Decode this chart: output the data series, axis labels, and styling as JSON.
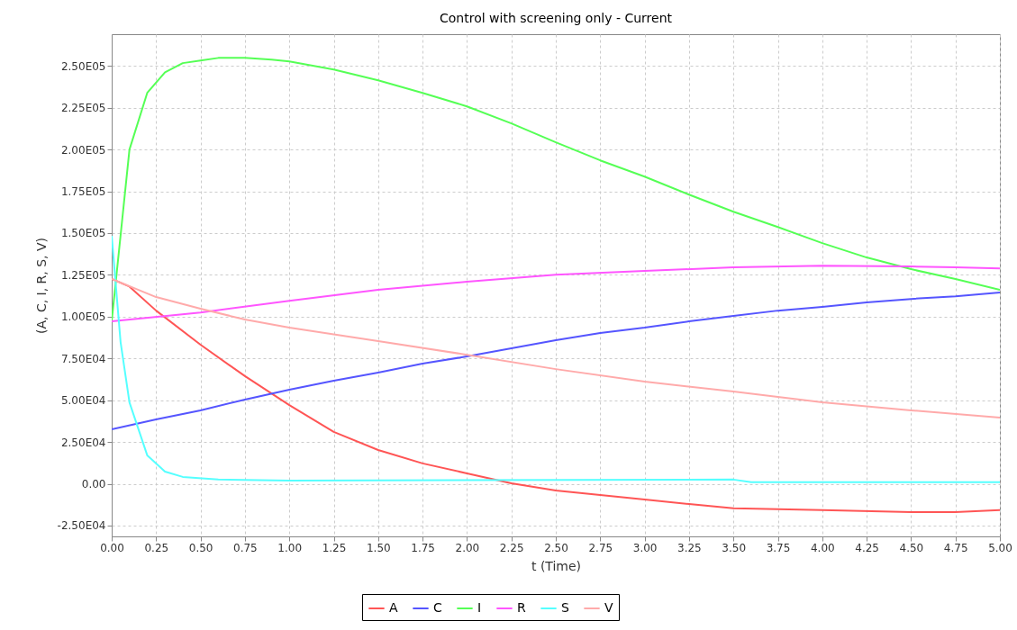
{
  "chart_data": {
    "type": "line",
    "title": "Control with screening only - Current",
    "xlabel": "t (Time)",
    "ylabel": "(A, C, I, R, S, V)",
    "xlim": [
      0,
      5
    ],
    "xticks": [
      {
        "value": 0,
        "label": "0.00"
      },
      {
        "value": 0.25,
        "label": "0.25"
      },
      {
        "value": 0.5,
        "label": "0.50"
      },
      {
        "value": 0.75,
        "label": "0.75"
      },
      {
        "value": 1,
        "label": "1.00"
      },
      {
        "value": 1.25,
        "label": "1.25"
      },
      {
        "value": 1.5,
        "label": "1.50"
      },
      {
        "value": 1.75,
        "label": "1.75"
      },
      {
        "value": 2,
        "label": "2.00"
      },
      {
        "value": 2.25,
        "label": "2.25"
      },
      {
        "value": 2.5,
        "label": "2.50"
      },
      {
        "value": 2.75,
        "label": "2.75"
      },
      {
        "value": 3,
        "label": "3.00"
      },
      {
        "value": 3.25,
        "label": "3.25"
      },
      {
        "value": 3.5,
        "label": "3.50"
      },
      {
        "value": 3.75,
        "label": "3.75"
      },
      {
        "value": 4,
        "label": "4.00"
      },
      {
        "value": 4.25,
        "label": "4.25"
      },
      {
        "value": 4.5,
        "label": "4.50"
      },
      {
        "value": 4.75,
        "label": "4.75"
      },
      {
        "value": 5,
        "label": "5.00"
      }
    ],
    "ylim": [
      -31500,
      269000
    ],
    "yticks": [
      {
        "value": -25000,
        "label": "-2.50E04"
      },
      {
        "value": 0,
        "label": "0.00"
      },
      {
        "value": 25000,
        "label": "2.50E04"
      },
      {
        "value": 50000,
        "label": "5.00E04"
      },
      {
        "value": 75000,
        "label": "7.50E04"
      },
      {
        "value": 100000,
        "label": "1.00E05"
      },
      {
        "value": 125000,
        "label": "1.25E05"
      },
      {
        "value": 150000,
        "label": "1.50E05"
      },
      {
        "value": 175000,
        "label": "1.75E05"
      },
      {
        "value": 200000,
        "label": "2.00E05"
      },
      {
        "value": 225000,
        "label": "2.25E05"
      },
      {
        "value": 250000,
        "label": "2.50E05"
      }
    ],
    "grid": true,
    "legend": "bottom",
    "line_style": "solid",
    "marker": "none",
    "series": [
      {
        "name": "A",
        "color": "#ff5555",
        "x": [
          0,
          0.1,
          0.25,
          0.5,
          0.75,
          1,
          1.25,
          1.5,
          1.75,
          2,
          2.25,
          2.5,
          2.75,
          3,
          3.25,
          3.5,
          4,
          4.5,
          4.75,
          5
        ],
        "values": [
          122500,
          118000,
          103600,
          83200,
          64400,
          47100,
          31000,
          20200,
          12200,
          6200,
          300,
          -4000,
          -6700,
          -9400,
          -12100,
          -14700,
          -15800,
          -16900,
          -16900,
          -15800
        ]
      },
      {
        "name": "C",
        "color": "#5555ff",
        "x": [
          0,
          0.25,
          0.5,
          0.75,
          1,
          1.25,
          1.5,
          1.75,
          2,
          2.25,
          2.5,
          2.75,
          3,
          3.25,
          3.5,
          3.75,
          4,
          4.25,
          4.5,
          4.75,
          5
        ],
        "values": [
          32600,
          38500,
          43900,
          50400,
          56300,
          61700,
          66500,
          71900,
          76200,
          81000,
          85900,
          90200,
          93400,
          97200,
          100400,
          103600,
          105800,
          108500,
          110600,
          112200,
          114400
        ]
      },
      {
        "name": "I",
        "color": "#55ff55",
        "x": [
          0,
          0.1,
          0.2,
          0.3,
          0.4,
          0.5,
          0.6,
          0.75,
          0.9,
          1,
          1.25,
          1.5,
          1.75,
          2,
          2.25,
          2.5,
          2.75,
          3,
          3.25,
          3.5,
          3.75,
          4,
          4.25,
          4.5,
          4.75,
          5
        ],
        "values": [
          97200,
          200000,
          233900,
          246200,
          251700,
          253200,
          254800,
          254800,
          253800,
          252700,
          247900,
          241400,
          233900,
          225800,
          215600,
          204300,
          193500,
          183800,
          173000,
          162800,
          153600,
          144000,
          135400,
          128400,
          122500,
          116000
        ]
      },
      {
        "name": "R",
        "color": "#ff55ff",
        "x": [
          0,
          0.5,
          1,
          1.5,
          2,
          2.5,
          3,
          3.5,
          4,
          4.5,
          4.75,
          5
        ],
        "values": [
          97200,
          102500,
          109500,
          116000,
          120900,
          125100,
          127300,
          129500,
          130500,
          130000,
          129500,
          128900
        ]
      },
      {
        "name": "S",
        "color": "#55ffff",
        "x": [
          0,
          0.05,
          0.1,
          0.2,
          0.3,
          0.4,
          0.6,
          1,
          3.5,
          3.6,
          5
        ],
        "values": [
          148300,
          84800,
          48700,
          17000,
          7300,
          4100,
          2500,
          1900,
          2500,
          900,
          900
        ]
      },
      {
        "name": "V",
        "color": "#ffaaaa",
        "x": [
          0,
          0.25,
          0.5,
          0.75,
          1,
          1.5,
          2,
          2.5,
          3,
          3.5,
          4,
          4.5,
          5
        ],
        "values": [
          122500,
          111700,
          104700,
          98300,
          93400,
          85300,
          77200,
          68600,
          61100,
          55200,
          48700,
          43900,
          39600
        ]
      }
    ]
  }
}
